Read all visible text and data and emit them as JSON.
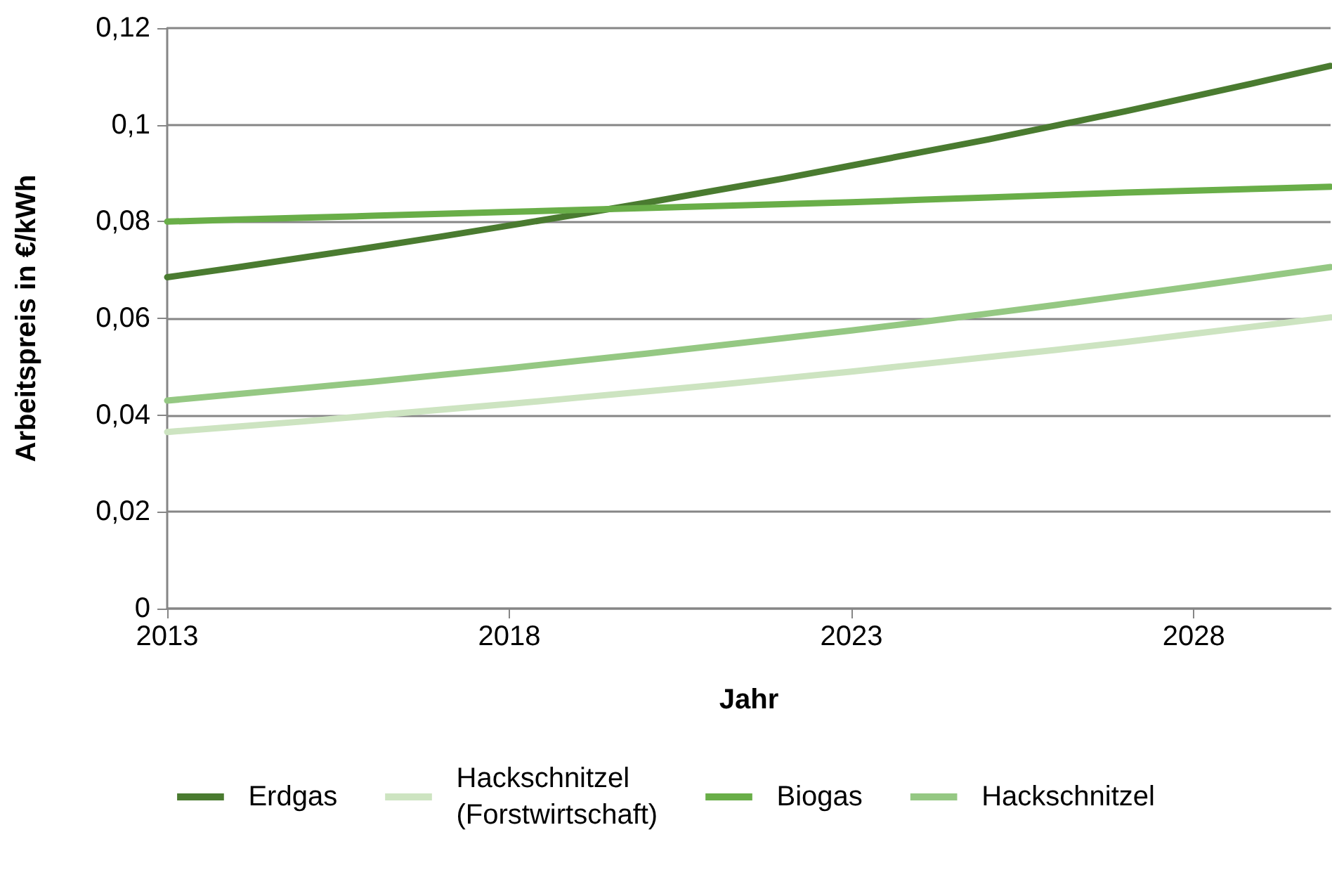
{
  "chart_data": {
    "type": "line",
    "xlabel": "Jahr",
    "ylabel": "Arbeitspreis in €/kWh",
    "x": [
      2013,
      2014,
      2015,
      2016,
      2017,
      2018,
      2019,
      2020,
      2021,
      2022,
      2023,
      2024,
      2025,
      2026,
      2027,
      2028,
      2029,
      2030
    ],
    "series": [
      {
        "name": "Erdgas",
        "color": "#4a7b30",
        "values": [
          0.0685,
          0.0705,
          0.0726,
          0.0747,
          0.0769,
          0.0792,
          0.0815,
          0.0839,
          0.0864,
          0.0889,
          0.0916,
          0.0943,
          0.097,
          0.0999,
          0.1028,
          0.1059,
          0.109,
          0.1122
        ]
      },
      {
        "name": "Hackschnitzel\n(Forstwirtschaft)",
        "color": "#cde4c1",
        "values": [
          0.0365,
          0.0376,
          0.0387,
          0.0399,
          0.0411,
          0.0423,
          0.0436,
          0.0449,
          0.0462,
          0.0476,
          0.049,
          0.0505,
          0.052,
          0.0535,
          0.0551,
          0.0568,
          0.0585,
          0.0602
        ]
      },
      {
        "name": "Biogas",
        "color": "#69ae48",
        "values": [
          0.08,
          0.0804,
          0.0808,
          0.0812,
          0.0816,
          0.082,
          0.0824,
          0.0828,
          0.0832,
          0.0836,
          0.084,
          0.0845,
          0.085,
          0.0855,
          0.086,
          0.0864,
          0.0868,
          0.0872
        ]
      },
      {
        "name": "Hackschnitzel",
        "color": "#95c883",
        "values": [
          0.043,
          0.0443,
          0.0456,
          0.0469,
          0.0483,
          0.0497,
          0.0512,
          0.0527,
          0.0543,
          0.0559,
          0.0575,
          0.0592,
          0.061,
          0.0628,
          0.0647,
          0.0666,
          0.0686,
          0.0706
        ]
      }
    ],
    "xlim": [
      2013,
      2030
    ],
    "xticks": [
      2013,
      2018,
      2023,
      2028
    ],
    "ylim": [
      0,
      0.12
    ],
    "yticks": [
      0,
      {
        "value": 0.02,
        "label": "0,02"
      },
      {
        "value": 0.04,
        "label": "0,04"
      },
      {
        "value": 0.06,
        "label": "0,06"
      },
      {
        "value": 0.08,
        "label": "0,08"
      },
      {
        "value": 0.1,
        "label": "0,1"
      },
      {
        "value": 0.12,
        "label": "0,12"
      }
    ],
    "grid": "y",
    "legend": "bottom",
    "marker": "none",
    "line_style": "solid"
  }
}
